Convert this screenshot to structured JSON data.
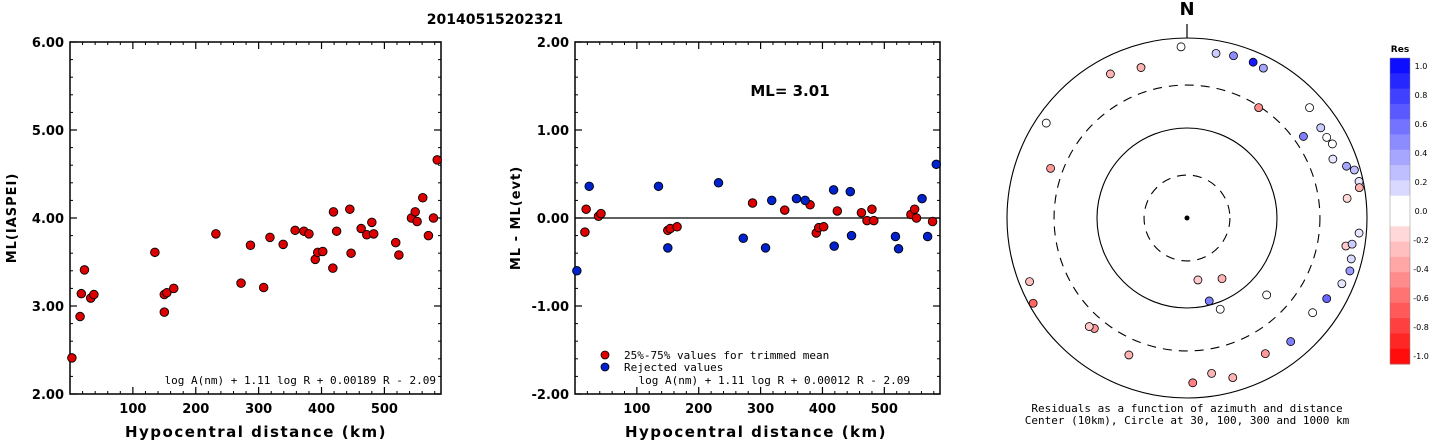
{
  "figure": {
    "title": "20140515202321"
  },
  "chart_data": [
    {
      "type": "scatter",
      "id": "ml",
      "xlabel": "Hypocentral distance (km)",
      "ylabel": "ML(IASPEI)",
      "xlim": [
        0,
        590
      ],
      "ylim": [
        2.0,
        6.0
      ],
      "xticks": [
        100,
        200,
        300,
        400,
        500
      ],
      "yticks": [
        "2.00",
        "3.00",
        "4.00",
        "5.00",
        "6.00"
      ],
      "formula": "log A(nm) + 1.11 log R + 0.00189 R - 2.09",
      "point_color": "#dd0000",
      "points": [
        [
          3,
          2.41
        ],
        [
          18,
          3.14
        ],
        [
          16,
          2.88
        ],
        [
          23,
          3.41
        ],
        [
          33,
          3.09
        ],
        [
          38,
          3.13
        ],
        [
          135,
          3.61
        ],
        [
          150,
          2.93
        ],
        [
          150,
          3.13
        ],
        [
          154,
          3.15
        ],
        [
          165,
          3.2
        ],
        [
          232,
          3.82
        ],
        [
          272,
          3.26
        ],
        [
          287,
          3.69
        ],
        [
          308,
          3.21
        ],
        [
          318,
          3.78
        ],
        [
          339,
          3.7
        ],
        [
          358,
          3.86
        ],
        [
          372,
          3.85
        ],
        [
          380,
          3.82
        ],
        [
          390,
          3.53
        ],
        [
          394,
          3.61
        ],
        [
          402,
          3.62
        ],
        [
          418,
          3.43
        ],
        [
          419,
          4.07
        ],
        [
          424,
          3.85
        ],
        [
          445,
          4.1
        ],
        [
          447,
          3.6
        ],
        [
          463,
          3.88
        ],
        [
          472,
          3.81
        ],
        [
          480,
          3.95
        ],
        [
          483,
          3.82
        ],
        [
          518,
          3.72
        ],
        [
          523,
          3.58
        ],
        [
          543,
          4.0
        ],
        [
          549,
          4.07
        ],
        [
          552,
          3.96
        ],
        [
          561,
          4.23
        ],
        [
          570,
          3.8
        ],
        [
          578,
          4.0
        ],
        [
          584,
          4.66
        ]
      ]
    },
    {
      "type": "scatter",
      "id": "residual",
      "xlabel": "Hypocentral distance (km)",
      "ylabel": "ML - ML(evt)",
      "xlim": [
        0,
        590
      ],
      "ylim": [
        -2.0,
        2.0
      ],
      "xticks": [
        100,
        200,
        300,
        400,
        500
      ],
      "yticks": [
        "-2.00",
        "-1.00",
        "0.00",
        "1.00",
        "2.00"
      ],
      "annotation": "ML= 3.01",
      "formula": "log A(nm) + 1.11 log R + 0.00012 R - 2.09",
      "legend": [
        {
          "label": "25%-75% values for trimmed mean",
          "color": "#dd0000"
        },
        {
          "label": "Rejected values",
          "color": "#0022cc"
        }
      ],
      "series": [
        {
          "name": "25%-75% values for trimmed mean",
          "color": "#dd0000",
          "points": [
            [
              18,
              0.1
            ],
            [
              16,
              -0.16
            ],
            [
              38,
              0.02
            ],
            [
              42,
              0.05
            ],
            [
              150,
              -0.14
            ],
            [
              154,
              -0.12
            ],
            [
              165,
              -0.1
            ],
            [
              287,
              0.17
            ],
            [
              339,
              0.09
            ],
            [
              380,
              0.15
            ],
            [
              390,
              -0.17
            ],
            [
              394,
              -0.11
            ],
            [
              402,
              -0.1
            ],
            [
              424,
              0.08
            ],
            [
              463,
              0.06
            ],
            [
              472,
              -0.03
            ],
            [
              480,
              0.1
            ],
            [
              483,
              -0.03
            ],
            [
              543,
              0.04
            ],
            [
              549,
              0.1
            ],
            [
              552,
              0.0
            ],
            [
              578,
              -0.04
            ]
          ]
        },
        {
          "name": "Rejected values",
          "color": "#0022cc",
          "points": [
            [
              3,
              -0.6
            ],
            [
              23,
              0.36
            ],
            [
              135,
              0.36
            ],
            [
              150,
              -0.34
            ],
            [
              232,
              0.4
            ],
            [
              272,
              -0.23
            ],
            [
              308,
              -0.34
            ],
            [
              318,
              0.2
            ],
            [
              358,
              0.22
            ],
            [
              372,
              0.2
            ],
            [
              418,
              0.32
            ],
            [
              419,
              -0.32
            ],
            [
              445,
              0.3
            ],
            [
              447,
              -0.2
            ],
            [
              518,
              -0.21
            ],
            [
              523,
              -0.35
            ],
            [
              561,
              0.22
            ],
            [
              570,
              -0.21
            ],
            [
              584,
              0.61
            ]
          ]
        }
      ]
    },
    {
      "type": "polar",
      "id": "azimuth",
      "north_label": "N",
      "caption_line1": "Residuals as a function of azimuth and distance",
      "caption_line2": "Center (10km), Circle at 30, 100, 300 and 1000 km",
      "rings_km": [
        30,
        100,
        300,
        1000
      ],
      "points": [
        {
          "az": 358,
          "km": 800,
          "res": 0.05
        },
        {
          "az": 16,
          "km": 750,
          "res": 0.45
        },
        {
          "az": 23,
          "km": 760,
          "res": 0.9
        },
        {
          "az": 27,
          "km": 740,
          "res": 0.35
        },
        {
          "az": 10,
          "km": 720,
          "res": 0.2
        },
        {
          "az": 48,
          "km": 680,
          "res": 0.0
        },
        {
          "az": 343,
          "km": 560,
          "res": -0.3
        },
        {
          "az": 332,
          "km": 650,
          "res": -0.3
        },
        {
          "az": 304,
          "km": 770,
          "res": 0.05
        },
        {
          "az": 33,
          "km": 290,
          "res": -0.45
        },
        {
          "az": 55,
          "km": 380,
          "res": 0.5
        },
        {
          "az": 60,
          "km": 620,
          "res": 0.05
        },
        {
          "az": 56,
          "km": 620,
          "res": 0.2
        },
        {
          "az": 63,
          "km": 650,
          "res": 0.05
        },
        {
          "az": 68,
          "km": 560,
          "res": 0.1
        },
        {
          "az": 72,
          "km": 730,
          "res": 0.35
        },
        {
          "az": 74,
          "km": 860,
          "res": 0.25
        },
        {
          "az": 78,
          "km": 900,
          "res": 0.1
        },
        {
          "az": 80,
          "km": 880,
          "res": -0.3
        },
        {
          "az": 83,
          "km": 620,
          "res": -0.15
        },
        {
          "az": 100,
          "km": 620,
          "res": -0.2
        },
        {
          "az": 99,
          "km": 720,
          "res": 0.2
        },
        {
          "az": 95,
          "km": 830,
          "res": 0.1
        },
        {
          "az": 104,
          "km": 760,
          "res": 0.15
        },
        {
          "az": 108,
          "km": 800,
          "res": 0.4
        },
        {
          "az": 113,
          "km": 740,
          "res": 0.1
        },
        {
          "az": 120,
          "km": 620,
          "res": 0.6
        },
        {
          "az": 127,
          "km": 560,
          "res": 0.05
        },
        {
          "az": 140,
          "km": 620,
          "res": 0.5
        },
        {
          "az": 150,
          "km": 550,
          "res": -0.4
        },
        {
          "az": 164,
          "km": 700,
          "res": -0.3
        },
        {
          "az": 171,
          "km": 560,
          "res": -0.3
        },
        {
          "az": 178,
          "km": 680,
          "res": -0.5
        },
        {
          "az": 160,
          "km": 120,
          "res": 0.0
        },
        {
          "az": 165,
          "km": 90,
          "res": 0.5
        },
        {
          "az": 150,
          "km": 60,
          "res": -0.3
        },
        {
          "az": 170,
          "km": 50,
          "res": -0.2
        },
        {
          "az": 134,
          "km": 170,
          "res": 0.05
        },
        {
          "az": 203,
          "km": 450,
          "res": -0.3
        },
        {
          "az": 220,
          "km": 400,
          "res": -0.4
        },
        {
          "az": 222,
          "km": 420,
          "res": -0.2
        },
        {
          "az": 241,
          "km": 900,
          "res": -0.6
        },
        {
          "az": 248,
          "km": 770,
          "res": -0.25
        },
        {
          "az": 290,
          "km": 410,
          "res": -0.4
        }
      ],
      "colorbar": {
        "title": "Res",
        "ticks": [
          "1.0",
          "0.8",
          "0.6",
          "0.4",
          "0.2",
          "0.0",
          "-0.2",
          "-0.4",
          "-0.6",
          "-0.8",
          "-1.0"
        ]
      }
    }
  ]
}
